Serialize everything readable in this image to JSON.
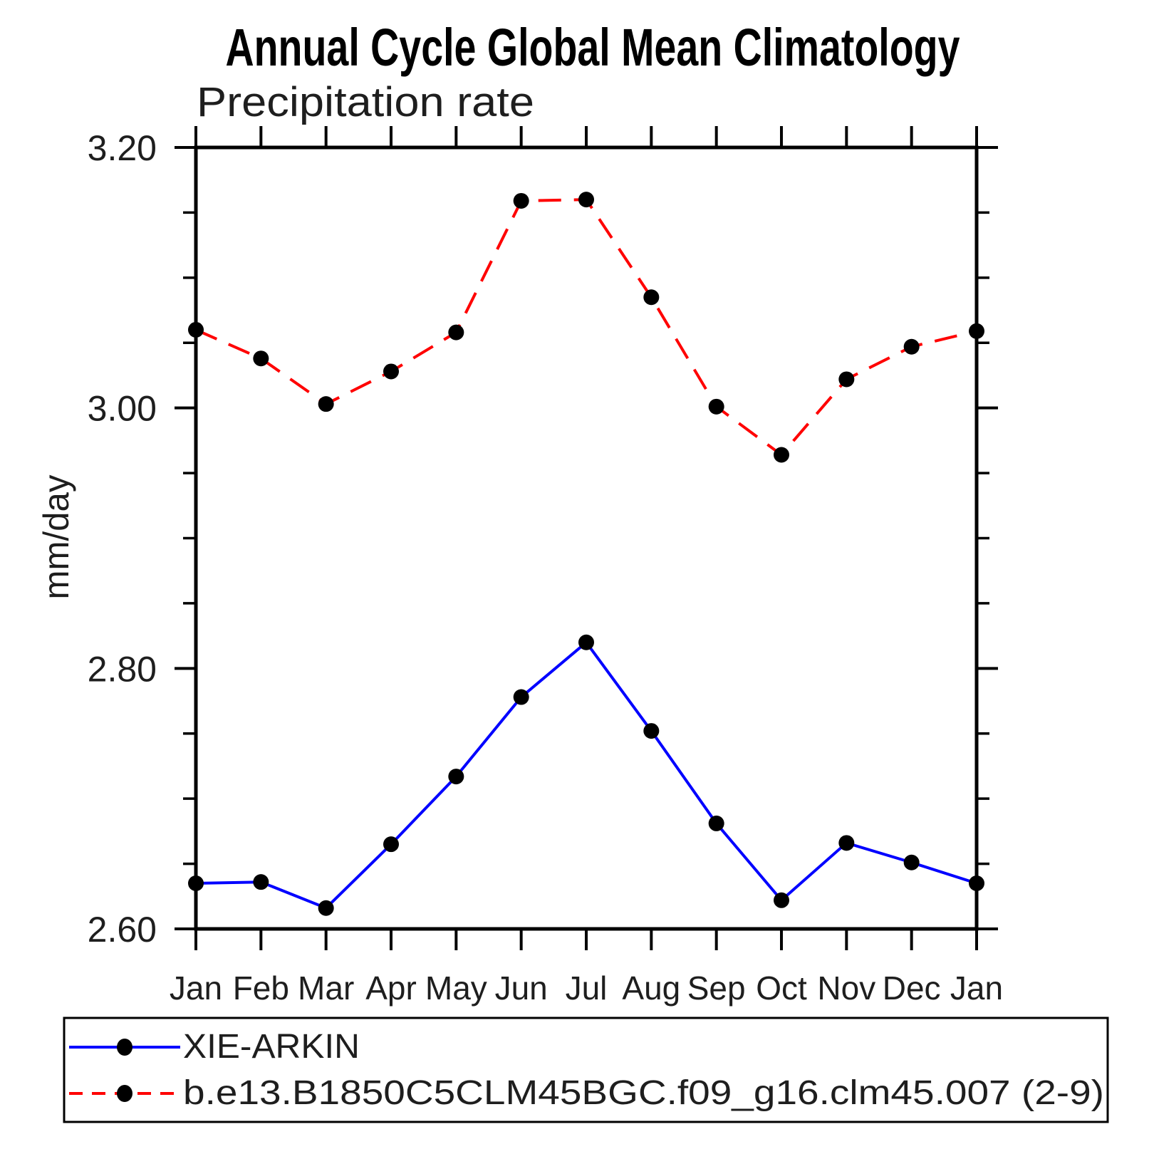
{
  "chart_data": {
    "type": "line",
    "title": "Annual Cycle Global Mean Climatology",
    "subtitle": "Precipitation rate",
    "xlabel": "",
    "ylabel": "mm/day",
    "x": [
      "Jan",
      "Feb",
      "Mar",
      "Apr",
      "May",
      "Jun",
      "Jul",
      "Aug",
      "Sep",
      "Oct",
      "Nov",
      "Dec",
      "Jan"
    ],
    "ylim": [
      2.6,
      3.2
    ],
    "y_major_tick_values": [
      3.2,
      3.0,
      2.8,
      2.6
    ],
    "y_major_tick_labels": [
      "3.20",
      "3.00",
      "2.80",
      "2.60"
    ],
    "y_minor_tick_step": 0.05,
    "grid": false,
    "legend": {
      "position": "bottom-left-box",
      "border": true
    },
    "colors": {
      "observation": "#0000ff",
      "model": "#ff0000",
      "marker": "#000000",
      "axis": "#000000"
    },
    "series": [
      {
        "name": "XIE-ARKIN",
        "line_color": "#0000ff",
        "line_style": "solid",
        "marker": "filled-circle",
        "marker_color": "#000000",
        "values": [
          2.635,
          2.636,
          2.616,
          2.665,
          2.717,
          2.778,
          2.82,
          2.752,
          2.681,
          2.622,
          2.666,
          2.651,
          2.635
        ]
      },
      {
        "name": "b.e13.B1850C5CLM45BGC.f09_g16.clm45.007 (2-9)",
        "line_color": "#ff0000",
        "line_style": "dashed",
        "marker": "filled-circle",
        "marker_color": "#000000",
        "values": [
          3.06,
          3.038,
          3.003,
          3.028,
          3.058,
          3.159,
          3.16,
          3.085,
          3.001,
          2.964,
          3.022,
          3.047,
          3.059
        ]
      }
    ]
  }
}
